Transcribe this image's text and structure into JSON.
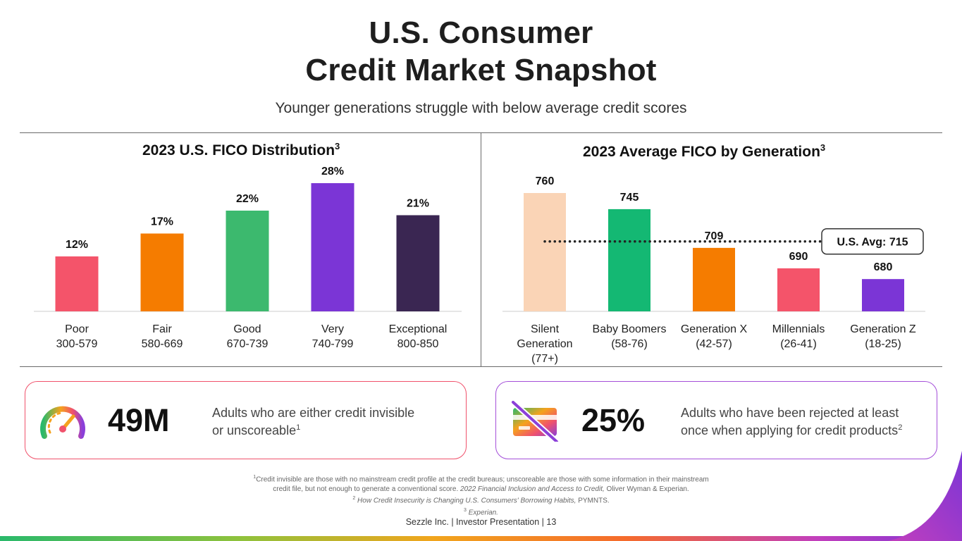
{
  "header": {
    "title_line1": "U.S. Consumer",
    "title_line2": "Credit Market Snapshot",
    "subtitle": "Younger generations struggle with below average credit scores"
  },
  "chart_data": [
    {
      "type": "bar",
      "title": "2023 U.S. FICO Distribution",
      "title_sup": "3",
      "categories": [
        "Poor",
        "Fair",
        "Good",
        "Very",
        "Exceptional"
      ],
      "category_ranges": [
        "300-579",
        "580-669",
        "670-739",
        "740-799",
        "800-850"
      ],
      "values": [
        12,
        17,
        22,
        28,
        21
      ],
      "value_labels": [
        "12%",
        "17%",
        "22%",
        "28%",
        "21%"
      ],
      "unit": "%",
      "colors": [
        "#f4546a",
        "#f57c00",
        "#3cb96e",
        "#7b35d6",
        "#3a2652"
      ],
      "ylim": [
        0,
        30
      ],
      "grid": false
    },
    {
      "type": "bar",
      "title": "2023 Average FICO by Generation",
      "title_sup": "3",
      "categories": [
        "Silent Generation (77+)",
        "Baby Boomers (58-76)",
        "Generation X (42-57)",
        "Millennials (26-41)",
        "Generation Z (18-25)"
      ],
      "category_lines": [
        [
          "Silent",
          "Generation",
          "(77+)"
        ],
        [
          "Baby Boomers",
          "(58-76)"
        ],
        [
          "Generation X",
          "(42-57)"
        ],
        [
          "Millennials",
          "(26-41)"
        ],
        [
          "Generation Z",
          "(18-25)"
        ]
      ],
      "values": [
        760,
        745,
        709,
        690,
        680
      ],
      "value_labels": [
        "760",
        "745",
        "709",
        "690",
        "680"
      ],
      "colors": [
        "#fad4b6",
        "#14b873",
        "#f57c00",
        "#f4546a",
        "#7b35d6"
      ],
      "ylim": [
        650,
        770
      ],
      "reference_line": {
        "value": 715,
        "label": "U.S. Avg: 715"
      },
      "grid": false
    }
  ],
  "cards": [
    {
      "stat": "49M",
      "text_line1": "Adults who are either credit invisible",
      "text_line2": "or unscoreable",
      "sup": "1",
      "border": "#f0526c",
      "icon": "gauge-icon"
    },
    {
      "stat": "25%",
      "text_line1": "Adults who have been rejected at least",
      "text_line2": "once when applying for credit products",
      "sup": "2",
      "border": "#a44fd9",
      "icon": "credit-card-crossed-icon"
    }
  ],
  "footnotes": {
    "n1_num": "1",
    "n1_a": "Credit invisible are those with no mainstream credit profile at the credit bureaus; unscoreable are those with some information in their mainstream",
    "n1_b": "credit file, but not enough to generate a conventional score.",
    "n1_c": "2022 Financial Inclusion and Access to Credit,",
    "n1_d": "Oliver Wyman & Experian.",
    "n2_num": "2",
    "n2_a": "How Credit Insecurity is Changing U.S. Consumers' Borrowing Habits,",
    "n2_b": "PYMNTS.",
    "n3_num": "3",
    "n3_a": "Experian."
  },
  "footer": "Sezzle Inc. | Investor Presentation | 13"
}
